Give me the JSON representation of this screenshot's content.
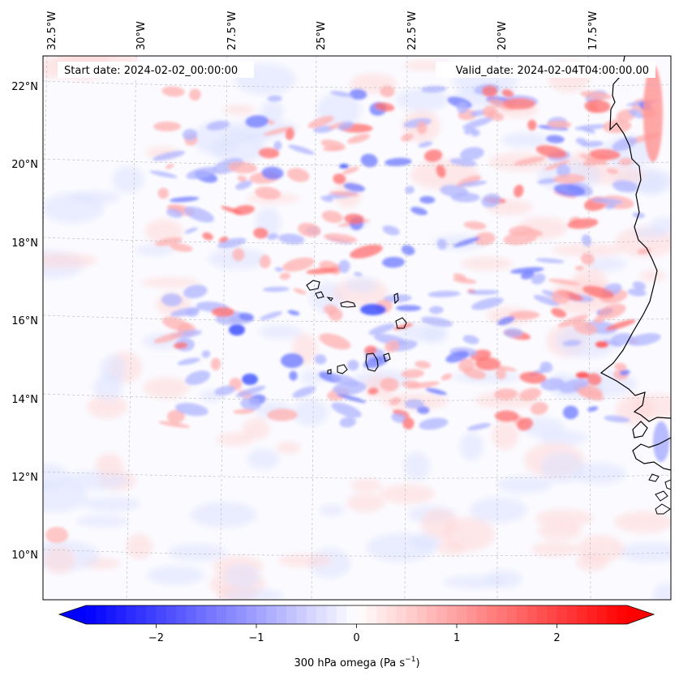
{
  "map": {
    "start_label": "Start date: 2024-02-02_00:00:00",
    "valid_label": "Valid_date: 2024-02-04T04:00:00.00",
    "lon_labels": [
      "32.5°W",
      "30°W",
      "27.5°W",
      "25°W",
      "22.5°W",
      "20°W",
      "17.5°W"
    ],
    "lat_labels": [
      "22°N",
      "20°N",
      "18°N",
      "16°N",
      "14°N",
      "12°N",
      "10°N"
    ],
    "field": "300 hPa omega",
    "colormap": "bwr",
    "gridlines": true,
    "coastline_color": "#000000"
  },
  "colorbar": {
    "label": "300 hPa omega (Pa s",
    "label_sup": "−1",
    "label_close": ")",
    "range": [
      -2.7,
      2.7
    ],
    "ticks": [
      {
        "value": -2,
        "label": "−2"
      },
      {
        "value": -1,
        "label": "−1"
      },
      {
        "value": 0,
        "label": "0"
      },
      {
        "value": 1,
        "label": "1"
      },
      {
        "value": 2,
        "label": "2"
      }
    ],
    "extend": "both",
    "min_color": "#0000ff",
    "mid_color": "#ffffff",
    "max_color": "#ff0000"
  }
}
